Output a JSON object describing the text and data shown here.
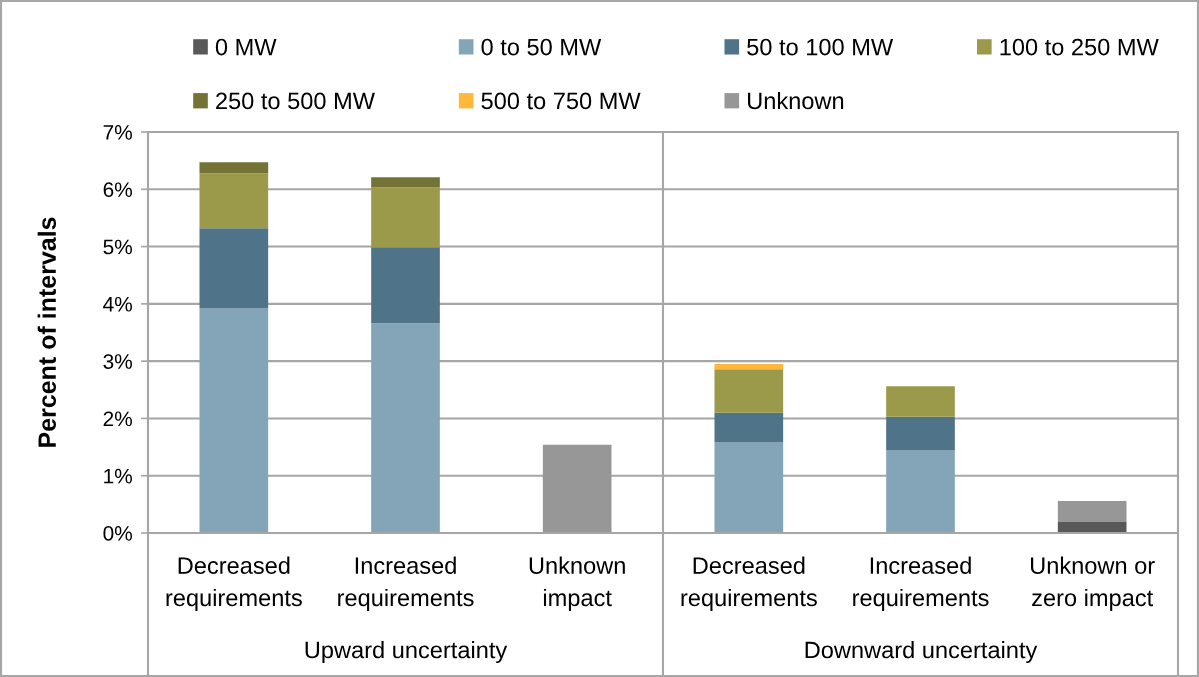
{
  "chart_data": {
    "type": "bar",
    "stacked": true,
    "ylabel": "Percent of intervals",
    "categories": [
      "Decreased\nrequirements",
      "Increased\nrequirements",
      "Unknown\nimpact",
      "Decreased\nrequirements",
      "Increased\nrequirements",
      "Unknown or\nzero impact"
    ],
    "annotations": [
      "Upward uncertainty",
      "Downward uncertainty"
    ],
    "series": [
      {
        "name": "0 MW",
        "color": "#595959",
        "values": [
          null,
          null,
          null,
          null,
          null,
          0.19
        ]
      },
      {
        "name": "0 to 50 MW",
        "color": "#84a5b8",
        "values": [
          3.92,
          3.66,
          null,
          1.58,
          1.44,
          null
        ]
      },
      {
        "name": "50 to 100 MW",
        "color": "#4f7389",
        "values": [
          1.4,
          1.33,
          null,
          0.52,
          0.59,
          null
        ]
      },
      {
        "name": "100 to 250 MW",
        "color": "#9a9a4a",
        "values": [
          0.96,
          1.04,
          null,
          0.76,
          0.53,
          null
        ]
      },
      {
        "name": "250 to 500 MW",
        "color": "#737335",
        "values": [
          0.19,
          0.18,
          null,
          null,
          null,
          null
        ]
      },
      {
        "name": "500 to 750 MW",
        "color": "#ffb83a",
        "values": [
          null,
          null,
          null,
          0.09,
          null,
          null
        ]
      },
      {
        "name": "Unknown",
        "color": "#979797",
        "values": [
          null,
          null,
          1.54,
          null,
          null,
          0.37
        ]
      }
    ],
    "ylim": [
      0,
      7
    ],
    "yticks": [
      {
        "value": 0,
        "label": "0%"
      },
      {
        "value": 1,
        "label": "1%"
      },
      {
        "value": 2,
        "label": "2%"
      },
      {
        "value": 3,
        "label": "3%"
      },
      {
        "value": 4,
        "label": "4%"
      },
      {
        "value": 5,
        "label": "5%"
      },
      {
        "value": 6,
        "label": "6%"
      },
      {
        "value": 7,
        "label": "7%"
      }
    ],
    "grid": "y",
    "legend": "top"
  }
}
